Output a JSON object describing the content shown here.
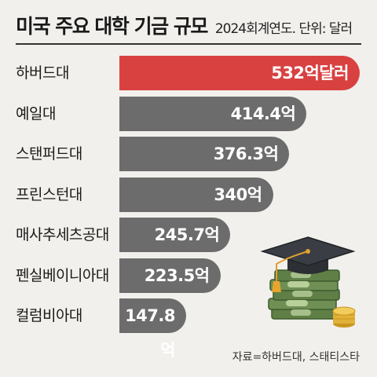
{
  "header": {
    "title": "미국 주요 대학 기금 규모",
    "subtitle": "2024회계연도. 단위: 달러"
  },
  "source": "자료=하버드대, 스태티스타",
  "colors": {
    "highlight": "#d94141",
    "bar": "#6c6c6c",
    "background": "#f1f0ec"
  },
  "illustration": "graduation-cap-on-money-stack",
  "chart_data": {
    "type": "bar",
    "orientation": "horizontal",
    "unit": "억달러",
    "categories": [
      "하버드대",
      "예일대",
      "스탠퍼드대",
      "프린스턴대",
      "매사추세츠공대",
      "펜실베이니아대",
      "컬럼비아대"
    ],
    "values": [
      532,
      414.4,
      376.3,
      340,
      245.7,
      223.5,
      147.8
    ],
    "labels": [
      "532억달러",
      "414.4억",
      "376.3억",
      "340억",
      "245.7억",
      "223.5억",
      "147.8억"
    ],
    "highlight_index": 0,
    "xlim": [
      0,
      532
    ]
  }
}
